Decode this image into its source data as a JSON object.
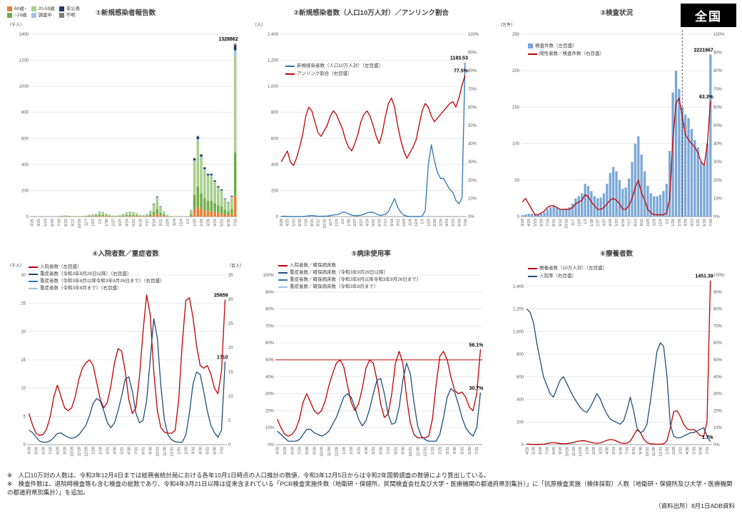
{
  "page": {
    "region_label": "全国",
    "footnotes": [
      "※　人口10万対の人数は、令和3年12月4日までは総務省統計局における各年10月1日時点の人口推計の数値、令和3年12月5日からは令和2年国勢調査の数値により算出している。",
      "※　検査件数は、退院時検査等も含む検査の総数であり、令和4年3月21日以降は従来含まれている「PCR検査実施件数（地衛研・保健所、民間検査会社及び大学・医療機関の都道府県別集計）」に「抗原検査実施（検体採取）人数（地衛研・保健所及び大学・医療機関の都道府県別集計）」を追加。"
    ],
    "source": "（資料出所）8月1日ADB資料"
  },
  "chart_data": [
    {
      "type": "stacked-bar",
      "title": "①新規感染者報告数",
      "unit_left": "（千人）",
      "left": {
        "min": 0,
        "max": 1400,
        "step": 200
      },
      "tick_every": 2,
      "x_ticks": [
        "3/28",
        "4/25",
        "5/23",
        "6/20",
        "7/18",
        "8/15",
        "9/12",
        "10/10",
        "11/7",
        "12/5",
        "1/2",
        "1/30",
        "2/27",
        "3/27",
        "4/24",
        "5/22",
        "6/19",
        "7/17",
        "8/14",
        "9/11",
        "10/9",
        "11/6",
        "12/4",
        "1/1",
        "1/29",
        "2/26",
        "3/26",
        "4/23",
        "5/21",
        "6/18",
        "7/16"
      ],
      "stack": [
        {
          "label": "60歳~",
          "color": "#ed7d31",
          "fraction": 0.12
        },
        {
          "label": "~19歳",
          "color": "#70ad47",
          "fraction": 0.25
        },
        {
          "label": "20-59歳",
          "color": "#a9d08e",
          "fraction": 0.56
        },
        {
          "label": "調査中",
          "color": "#9dc3e6",
          "fraction": 0.03
        },
        {
          "label": "非公表",
          "color": "#203864",
          "fraction": 0.03
        },
        {
          "label": "不明",
          "color": "#7f7f7f",
          "fraction": 0.01
        }
      ],
      "totals": [
        2,
        3.5,
        2.5,
        1.5,
        0.3,
        0.3,
        0.5,
        1.2,
        4,
        7,
        9,
        7,
        3.5,
        3.3,
        3.7,
        4.5,
        8,
        14,
        17,
        22,
        40,
        35,
        22,
        13,
        8,
        8,
        12,
        20,
        32,
        38,
        35,
        25,
        12,
        12,
        20,
        45,
        100,
        155,
        80,
        40,
        12,
        4,
        1.5,
        1,
        1,
        1.2,
        4,
        50,
        450,
        620,
        480,
        380,
        330,
        330,
        280,
        235,
        210,
        140,
        110,
        160,
        1328.862
      ],
      "end_labels": [
        {
          "text": "1328862"
        }
      ]
    },
    {
      "type": "line",
      "title": "②新規感染者数（人口10万人対）／アンリンク割合",
      "unit_left": "（人）",
      "left": {
        "min": 0,
        "max": 1400,
        "step": 200,
        "comma": true
      },
      "right": {
        "min": 0,
        "max": 100,
        "step": 10,
        "percent": true
      },
      "tick_every": 2,
      "x_ticks": [
        "3/28",
        "4/25",
        "5/23",
        "6/20",
        "7/18",
        "8/15",
        "9/12",
        "10/10",
        "11/7",
        "12/5",
        "1/2",
        "1/30",
        "2/27",
        "3/27",
        "4/24",
        "5/22",
        "6/19",
        "7/17",
        "8/14",
        "9/11",
        "10/9",
        "11/6",
        "12/4",
        "1/1",
        "1/29",
        "2/26",
        "3/26",
        "4/23",
        "5/21",
        "6/18",
        "7/16"
      ],
      "series": [
        {
          "label": "新規感染者数（人口10万人対）（左目盛）",
          "color": "#2e75b6",
          "axis": "left",
          "type": "line",
          "values": [
            1.8,
            3.1,
            2.2,
            1.3,
            0.3,
            0.3,
            0.4,
            1.1,
            3.6,
            6.2,
            8,
            6.2,
            3.1,
            2.9,
            3.3,
            4,
            7.1,
            12.5,
            15.1,
            19.6,
            35.6,
            31.2,
            19.6,
            11.6,
            7.1,
            7.1,
            10.7,
            17.8,
            28.5,
            33.8,
            31.2,
            22.3,
            10.7,
            10.7,
            17.8,
            40.1,
            89,
            138,
            71.2,
            35.6,
            10.7,
            3.6,
            1.3,
            0.9,
            0.9,
            1.1,
            3.6,
            44.5,
            400.5,
            551.8,
            427.2,
            338.2,
            293.7,
            293.7,
            249.2,
            209.2,
            186.9,
            124.6,
            97.9,
            142.4,
            1183.53
          ]
        },
        {
          "label": "アンリンク割合（右目盛）",
          "color": "#c00000",
          "axis": "right",
          "type": "line",
          "values": [
            30,
            33,
            36,
            30,
            28,
            32,
            38,
            45,
            55,
            60,
            58,
            52,
            46,
            44,
            47,
            50,
            55,
            58,
            56,
            52,
            48,
            42,
            38,
            36,
            40,
            45,
            52,
            56,
            58,
            55,
            50,
            44,
            40,
            46,
            55,
            62,
            65,
            60,
            50,
            42,
            36,
            32,
            35,
            38,
            42,
            50,
            58,
            62,
            60,
            55,
            52,
            54,
            56,
            58,
            60,
            62,
            63,
            60,
            65,
            72,
            77.5
          ]
        }
      ],
      "end_labels": [
        {
          "series": 0,
          "text": "1183.53"
        },
        {
          "series": 1,
          "text": "77.5%"
        }
      ]
    },
    {
      "type": "combo",
      "title": "③検査状況",
      "unit_left": "（万件）",
      "left": {
        "min": 0,
        "max": 250,
        "step": 50
      },
      "right": {
        "min": 0,
        "max": 100,
        "step": 10,
        "percent": true
      },
      "tick_every": 2,
      "x_ticks": [
        "3/28",
        "4/25",
        "5/23",
        "6/20",
        "7/18",
        "8/15",
        "9/12",
        "10/10",
        "11/7",
        "12/5",
        "1/2",
        "1/30",
        "2/27",
        "3/27",
        "4/24",
        "5/22",
        "6/19",
        "7/17",
        "8/14",
        "9/11",
        "10/9",
        "11/6",
        "12/4",
        "1/1",
        "1/29",
        "2/26",
        "3/26",
        "4/23",
        "5/21",
        "6/18",
        "7/16"
      ],
      "vline_index": 51,
      "series": [
        {
          "label": "検査件数（左目盛）",
          "color": "#7ba7d7",
          "axis": "left",
          "type": "bar",
          "values": [
            2,
            3,
            4,
            4,
            3,
            3,
            4,
            6,
            10,
            13,
            15,
            13,
            10,
            10,
            11,
            13,
            18,
            25,
            28,
            32,
            45,
            42,
            35,
            28,
            25,
            26,
            32,
            45,
            60,
            68,
            62,
            50,
            38,
            40,
            52,
            75,
            100,
            110,
            85,
            62,
            42,
            32,
            28,
            28,
            30,
            35,
            45,
            90,
            170,
            200,
            175,
            150,
            140,
            135,
            120,
            105,
            95,
            75,
            70,
            100,
            222.2
          ]
        },
        {
          "label": "陽性者数／検査件数（右目盛）",
          "color": "#c00000",
          "axis": "right",
          "type": "line",
          "values": [
            8,
            10,
            7,
            4,
            1,
            1,
            2,
            3,
            5,
            6,
            6,
            5,
            4,
            4,
            4,
            4,
            5,
            7,
            8,
            9,
            12,
            11,
            8,
            6,
            4,
            4,
            5,
            7,
            9,
            10,
            9,
            7,
            4,
            4,
            6,
            10,
            16,
            20,
            13,
            9,
            4,
            2,
            1,
            1,
            1,
            1,
            2,
            10,
            42,
            62,
            65,
            55,
            45,
            42,
            40,
            38,
            35,
            30,
            28,
            40,
            63.3
          ]
        }
      ],
      "end_labels": [
        {
          "series": 0,
          "text": "2221967"
        },
        {
          "series": 1,
          "text": "63.3%"
        }
      ]
    },
    {
      "type": "line",
      "title": "④入院者数／重症者数",
      "unit_left": "（千人）",
      "unit_right": "（百人）",
      "left": {
        "min": 0,
        "max": 30,
        "step": 5
      },
      "right": {
        "min": 0,
        "max": 35,
        "step": 5
      },
      "tick_every": 2,
      "x_ticks": [
        "4/28",
        "5/28",
        "6/28",
        "7/28",
        "8/28",
        "9/28",
        "10/28",
        "11/28",
        "12/28",
        "1/28",
        "2/28",
        "3/31",
        "4/30",
        "5/31",
        "6/30",
        "7/31",
        "8/31",
        "9/30",
        "10/31",
        "11/30",
        "12/31",
        "1/31",
        "2/28",
        "3/31",
        "4/30",
        "5/31",
        "6/30",
        "7/31"
      ],
      "series": [
        {
          "label": "入院者数（左目盛）",
          "color": "#c00000",
          "axis": "left",
          "type": "line",
          "values": [
            5.5,
            3.5,
            2.0,
            1.6,
            1.8,
            2.8,
            5.0,
            8.5,
            10.5,
            8.5,
            6.5,
            6.0,
            6.5,
            8.5,
            11.5,
            13.5,
            14.5,
            15.0,
            14.0,
            11.0,
            8.0,
            6.5,
            7.5,
            10.5,
            14.5,
            17.0,
            16.5,
            13.0,
            8.0,
            5.5,
            6.5,
            12.0,
            20.0,
            26.5,
            23.0,
            13.0,
            6.0,
            3.0,
            2.2,
            2.0,
            2.0,
            2.5,
            8.0,
            18.0,
            25.5,
            26.0,
            22.5,
            17.5,
            14.0,
            13.5,
            14.0,
            12.5,
            10.0,
            9.0,
            13.0,
            25.659
          ]
        },
        {
          "label": "重症者数（令和3年9月26日以降）（右目盛）",
          "color": "#1f4e79",
          "axis": "right",
          "type": "line",
          "values": [
            3.0,
            2.5,
            1.6,
            0.7,
            0.5,
            0.5,
            0.8,
            1.5,
            2.3,
            2.4,
            1.9,
            1.5,
            1.3,
            1.5,
            2.0,
            3.0,
            4.0,
            6.0,
            8.5,
            9.5,
            9.0,
            7.0,
            4.5,
            3.5,
            4.5,
            7.0,
            10.0,
            13.5,
            14.0,
            11.0,
            6.5,
            4.5,
            5.0,
            9.0,
            17.5,
            26.0,
            22.0,
            12.0,
            5.0,
            2.0,
            1.0,
            0.6,
            0.5,
            0.5,
            2.0,
            6.5,
            12.5,
            15.0,
            14.5,
            11.0,
            7.0,
            4.0,
            2.5,
            1.5,
            3.0,
            17.1
          ]
        },
        {
          "label": "重症者数（令和3年8月以降令和3年9月26日まで）（右目盛）",
          "color": "#2e75b6",
          "axis": "right",
          "type": "line"
        },
        {
          "label": "重症者数（令和3年8月まで）（右目盛）",
          "color": "#9dc3e6",
          "axis": "right",
          "type": "line"
        }
      ],
      "end_labels": [
        {
          "series": 0,
          "text": "25659"
        },
        {
          "series": 1,
          "text": "1710"
        }
      ]
    },
    {
      "type": "line",
      "title": "⑤病床使用率",
      "left": {
        "min": 0,
        "max": 100,
        "step": 10,
        "percent": true
      },
      "tick_every": 2,
      "x_ticks": [
        "4/28",
        "5/28",
        "6/28",
        "7/28",
        "8/28",
        "9/28",
        "10/28",
        "11/28",
        "12/28",
        "1/28",
        "2/28",
        "3/31",
        "4/30",
        "5/31",
        "6/30",
        "7/31",
        "8/31",
        "9/30",
        "10/31",
        "11/30",
        "12/31",
        "1/31",
        "2/28",
        "3/31",
        "4/30",
        "5/31",
        "6/30",
        "7/31"
      ],
      "hline": {
        "value": 50,
        "color": "#c00000"
      },
      "series": [
        {
          "label": "入院者数／確保病床数",
          "color": "#c00000",
          "axis": "left",
          "type": "line",
          "values": [
            15,
            10,
            6,
            5,
            6,
            9,
            15,
            25,
            30,
            25,
            20,
            18,
            20,
            26,
            35,
            42,
            48,
            50,
            46,
            35,
            25,
            20,
            24,
            33,
            45,
            50,
            48,
            38,
            24,
            16,
            18,
            30,
            48,
            55,
            48,
            28,
            13,
            6,
            4,
            4,
            4,
            5,
            15,
            35,
            52,
            55,
            50,
            40,
            32,
            30,
            31,
            28,
            22,
            20,
            30,
            56.1
          ]
        },
        {
          "label": "重症者数／確保病床数（令和3年9月26日以降）",
          "color": "#1f4e79",
          "axis": "left",
          "type": "line",
          "values": [
            8,
            6,
            4,
            2,
            2,
            2,
            3,
            6,
            9,
            9,
            7,
            6,
            5,
            6,
            8,
            12,
            16,
            22,
            28,
            30,
            28,
            22,
            15,
            11,
            14,
            21,
            30,
            38,
            39,
            30,
            18,
            12,
            13,
            22,
            38,
            48,
            42,
            25,
            11,
            5,
            3,
            2,
            2,
            2,
            6,
            16,
            28,
            33,
            31,
            24,
            16,
            10,
            7,
            5,
            10,
            30.7
          ]
        },
        {
          "label": "重症者数／確保病床数（令和3年8月以降令和3年9月26日まで）",
          "color": "#2e75b6",
          "axis": "left",
          "type": "line"
        },
        {
          "label": "重症者数／確保病床数（令和3年8月まで）",
          "color": "#9dc3e6",
          "axis": "left",
          "type": "line"
        }
      ],
      "end_labels": [
        {
          "series": 0,
          "text": "56.1%"
        },
        {
          "series": 1,
          "text": "30.7%"
        }
      ]
    },
    {
      "type": "line",
      "title": "⑥療養者数",
      "left": {
        "min": 0,
        "max": 1500,
        "step": 200,
        "comma": true,
        "max_tick": 1400
      },
      "right": {
        "min": 0,
        "max": 100,
        "step": 10,
        "percent": true
      },
      "tick_every": 2,
      "x_ticks": [
        "4/28",
        "5/28",
        "6/28",
        "7/28",
        "8/28",
        "9/28",
        "10/28",
        "11/28",
        "12/28",
        "1/28",
        "2/28",
        "3/31",
        "4/30",
        "5/31",
        "6/30",
        "7/31",
        "8/31",
        "9/30",
        "10/31",
        "11/30",
        "12/31",
        "1/31",
        "2/28",
        "3/31",
        "4/30",
        "5/31",
        "6/30",
        "7/31"
      ],
      "series": [
        {
          "label": "療養者数（10万人対）（左目盛）",
          "color": "#c00000",
          "axis": "left",
          "type": "line",
          "values": [
            5,
            3,
            2,
            2,
            2,
            4,
            8,
            15,
            18,
            13,
            9,
            8,
            9,
            13,
            20,
            28,
            33,
            35,
            30,
            22,
            15,
            12,
            15,
            25,
            38,
            45,
            42,
            30,
            16,
            10,
            13,
            30,
            80,
            130,
            110,
            50,
            18,
            8,
            5,
            4,
            4,
            6,
            35,
            150,
            290,
            300,
            250,
            180,
            140,
            130,
            135,
            110,
            80,
            70,
            200,
            1451.39
          ]
        },
        {
          "label": "入院率（右目盛）",
          "color": "#1f4e79",
          "axis": "right",
          "type": "line",
          "values": [
            80,
            78,
            72,
            60,
            50,
            40,
            35,
            30,
            28,
            33,
            38,
            40,
            36,
            32,
            28,
            25,
            22,
            20,
            19,
            22,
            26,
            30,
            27,
            22,
            18,
            15,
            14,
            13,
            12,
            14,
            20,
            28,
            20,
            10,
            7,
            8,
            12,
            25,
            40,
            55,
            60,
            58,
            40,
            12,
            5,
            4,
            4,
            5,
            6,
            7,
            7,
            8,
            9,
            10,
            5,
            1.7
          ]
        }
      ],
      "end_labels": [
        {
          "series": 0,
          "text": "1451.39"
        },
        {
          "series": 1,
          "text": "1.7%"
        }
      ]
    }
  ]
}
